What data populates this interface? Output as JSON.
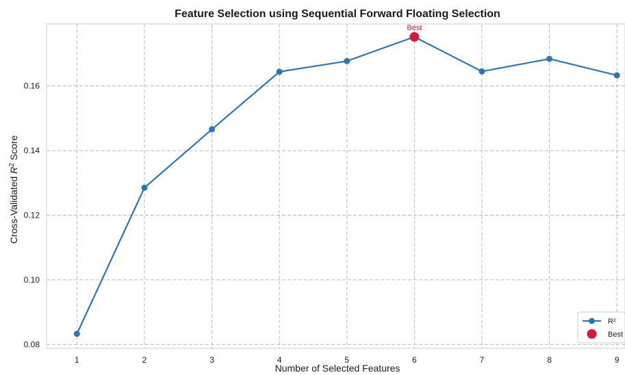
{
  "chart_data": {
    "type": "line",
    "title": "Feature Selection using Sequential Forward Floating Selection",
    "xlabel": "Number of Selected Features",
    "ylabel": "Cross-Validated R² Score",
    "ylabel_parts": {
      "prefix": "Cross-Validated ",
      "italic": "R",
      "superscript": "2",
      "suffix": " Score"
    },
    "x": [
      1,
      2,
      3,
      4,
      5,
      6,
      7,
      8,
      9
    ],
    "x_ticks": [
      "1",
      "2",
      "3",
      "4",
      "5",
      "6",
      "7",
      "8",
      "9"
    ],
    "xlim": [
      0.55,
      9.12
    ],
    "ylim": [
      0.0788,
      0.1792
    ],
    "y_ticks": [
      0.08,
      0.1,
      0.12,
      0.14,
      0.16
    ],
    "y_tick_labels": [
      "0.08",
      "0.10",
      "0.12",
      "0.14",
      "0.16"
    ],
    "grid": true,
    "series": [
      {
        "name": "R²",
        "color": "#2e75b0",
        "values": [
          0.0833,
          0.1285,
          0.1466,
          0.1644,
          0.1677,
          0.1752,
          0.1645,
          0.1684,
          0.1633
        ]
      }
    ],
    "best": {
      "name": "Best",
      "x": 6,
      "y": 0.1752,
      "label": "Best",
      "color": "#d7193f"
    },
    "legend": {
      "position": "bottom-right",
      "entries": [
        {
          "label": "R²",
          "marker": "line-dot",
          "color": "#2e75b0"
        },
        {
          "label": "Best",
          "marker": "dot",
          "color": "#d7193f"
        }
      ]
    }
  }
}
